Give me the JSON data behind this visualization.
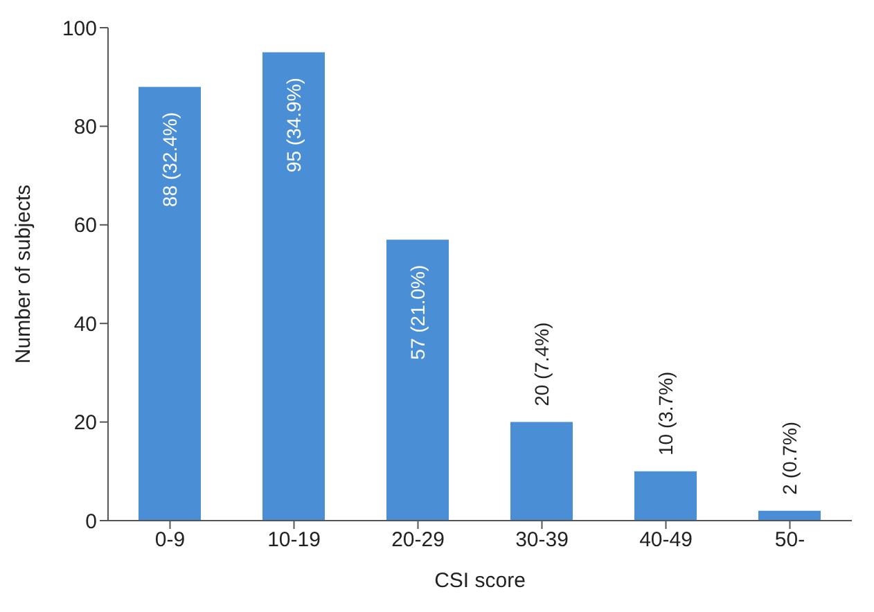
{
  "chart_data": {
    "type": "bar",
    "xlabel": "CSI score",
    "ylabel": "Number of subjects",
    "categories": [
      "0-9",
      "10-19",
      "20-29",
      "30-39",
      "40-49",
      "50-"
    ],
    "values": [
      88,
      95,
      57,
      20,
      10,
      2
    ],
    "value_labels": [
      "88 (32.4%)",
      "95 (34.9%)",
      "57 (21.0%)",
      "20 (7.4%)",
      "10 (3.7%)",
      "2 (0.7%)"
    ],
    "color": "#4a8fd6",
    "ylim": [
      0,
      100
    ],
    "yticks": [
      0,
      20,
      40,
      60,
      80,
      100
    ],
    "grid": false,
    "legend": false
  }
}
